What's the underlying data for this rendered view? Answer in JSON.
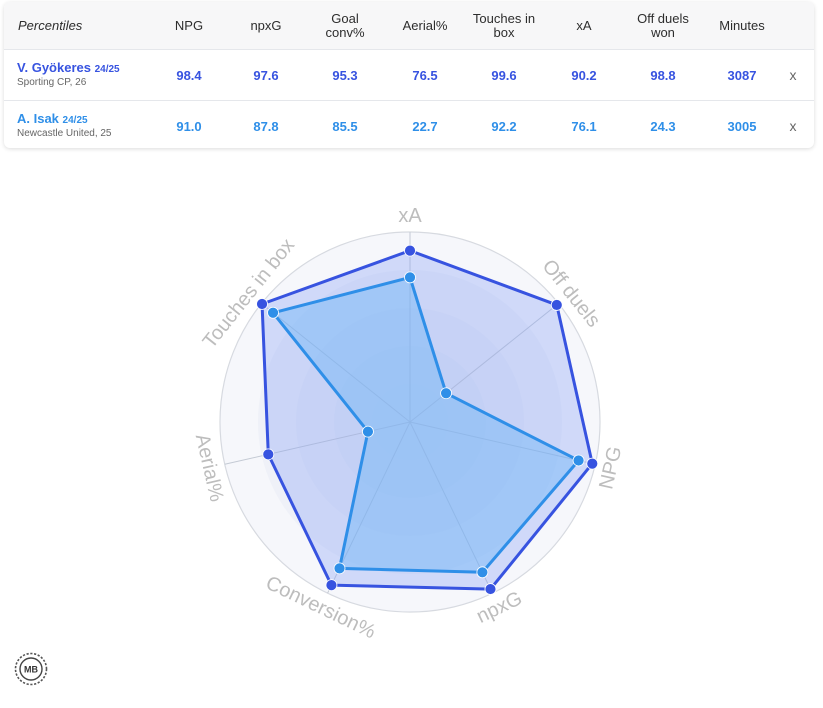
{
  "table": {
    "header_label": "Percentiles",
    "columns": [
      {
        "label": "NPG"
      },
      {
        "label": "npxG"
      },
      {
        "label": "Goal conv%"
      },
      {
        "label": "Aerial%"
      },
      {
        "label": "Touches in box"
      },
      {
        "label": "xA"
      },
      {
        "label": "Off duels won"
      },
      {
        "label": "Minutes"
      }
    ],
    "rows": [
      {
        "name": "V. Gyökeres",
        "season": "24/25",
        "club": "Sporting CP, 26",
        "values": [
          "98.4",
          "97.6",
          "95.3",
          "76.5",
          "99.6",
          "90.2",
          "98.8",
          "3087"
        ],
        "remove_label": "x"
      },
      {
        "name": "A. Isak",
        "season": "24/25",
        "club": "Newcastle United, 25",
        "values": [
          "91.0",
          "87.8",
          "85.5",
          "22.7",
          "92.2",
          "76.1",
          "24.3",
          "3005"
        ],
        "remove_label": "x"
      }
    ]
  },
  "colors": {
    "series1": "#3753e0",
    "series2": "#2f8fe8",
    "axis_label": "#bdbdbd"
  },
  "chart_data": {
    "type": "radar",
    "axes": [
      "xA",
      "Off duels",
      "NPG",
      "npxG",
      "Conversion%",
      "Aerial%",
      "Touches in box"
    ],
    "range": [
      0,
      100
    ],
    "series": [
      {
        "name": "V. Gyökeres",
        "values": [
          90.2,
          98.8,
          98.4,
          97.6,
          95.3,
          76.5,
          99.6
        ]
      },
      {
        "name": "A. Isak",
        "values": [
          76.1,
          24.3,
          91.0,
          87.8,
          85.5,
          22.7,
          92.2
        ]
      }
    ]
  },
  "logo": {
    "text": "MB"
  }
}
